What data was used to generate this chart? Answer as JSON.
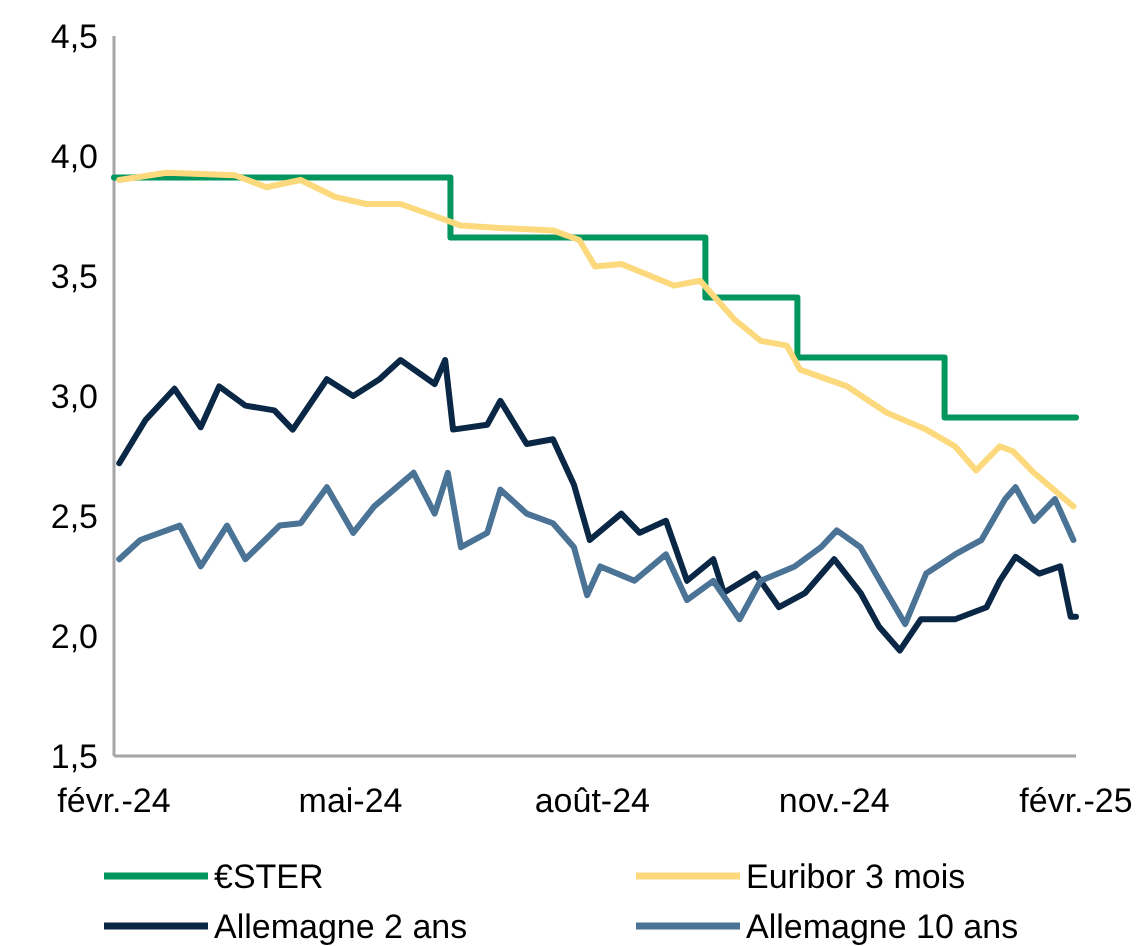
{
  "chart_data": {
    "type": "line",
    "xlim": [
      "2024-02-01",
      "2025-02-01"
    ],
    "ylim": [
      1.5,
      4.5
    ],
    "xticks": [
      {
        "value": "2024-02-01",
        "label": "févr.-24"
      },
      {
        "value": "2024-05-01",
        "label": "mai-24"
      },
      {
        "value": "2024-08-01",
        "label": "août-24"
      },
      {
        "value": "2024-11-01",
        "label": "nov.-24"
      },
      {
        "value": "2025-02-01",
        "label": "févr.-25"
      }
    ],
    "yticks": [
      {
        "value": 1.5,
        "label": "1,5"
      },
      {
        "value": 2,
        "label": "2,0"
      },
      {
        "value": 2.5,
        "label": "2,5"
      },
      {
        "value": 3,
        "label": "3,0"
      },
      {
        "value": 3.5,
        "label": "3,5"
      },
      {
        "value": 4,
        "label": "4,0"
      },
      {
        "value": 4.5,
        "label": "4,5"
      }
    ],
    "grid": false,
    "legend": "bottom",
    "series": [
      {
        "name": "€STER",
        "type": "step",
        "color": "#00965e",
        "x": [
          "2024-02-01",
          "2024-06-08",
          "2024-09-13",
          "2024-10-18",
          "2024-12-13",
          "2025-02-01"
        ],
        "values": [
          3.91,
          3.66,
          3.41,
          3.16,
          2.91,
          2.91
        ]
      },
      {
        "name": "Euribor 3 mois",
        "color": "#fdd97e",
        "x": [
          "2024-02-03",
          "2024-02-21",
          "2024-03-18",
          "2024-03-30",
          "2024-04-12",
          "2024-04-25",
          "2024-05-07",
          "2024-05-20",
          "2024-06-02",
          "2024-06-12",
          "2024-06-27",
          "2024-07-17",
          "2024-07-27",
          "2024-08-02",
          "2024-08-12",
          "2024-09-01",
          "2024-09-11",
          "2024-09-24",
          "2024-10-04",
          "2024-10-14",
          "2024-10-19",
          "2024-11-06",
          "2024-11-21",
          "2024-12-06",
          "2024-12-17",
          "2024-12-25",
          "2025-01-03",
          "2025-01-08",
          "2025-01-16",
          "2025-01-31"
        ],
        "values": [
          3.9,
          3.93,
          3.92,
          3.87,
          3.9,
          3.83,
          3.8,
          3.8,
          3.75,
          3.71,
          3.7,
          3.69,
          3.65,
          3.54,
          3.55,
          3.46,
          3.48,
          3.32,
          3.23,
          3.21,
          3.11,
          3.04,
          2.93,
          2.86,
          2.79,
          2.69,
          2.79,
          2.77,
          2.68,
          2.54
        ]
      },
      {
        "name": "Allemagne 2 ans",
        "color": "#0a2845",
        "x": [
          "2024-02-03",
          "2024-02-13",
          "2024-02-24",
          "2024-03-05",
          "2024-03-12",
          "2024-03-22",
          "2024-04-02",
          "2024-04-09",
          "2024-04-22",
          "2024-05-02",
          "2024-05-12",
          "2024-05-20",
          "2024-06-02",
          "2024-06-06",
          "2024-06-09",
          "2024-06-22",
          "2024-06-27",
          "2024-07-07",
          "2024-07-17",
          "2024-07-25",
          "2024-07-31",
          "2024-08-12",
          "2024-08-19",
          "2024-08-29",
          "2024-09-06",
          "2024-09-16",
          "2024-09-20",
          "2024-10-02",
          "2024-10-11",
          "2024-10-21",
          "2024-11-01",
          "2024-11-11",
          "2024-11-18",
          "2024-11-26",
          "2024-12-04",
          "2024-12-17",
          "2024-12-29",
          "2025-01-03",
          "2025-01-09",
          "2025-01-18",
          "2025-01-26",
          "2025-01-30",
          "2025-02-01"
        ],
        "values": [
          2.72,
          2.9,
          3.03,
          2.87,
          3.04,
          2.96,
          2.94,
          2.86,
          3.07,
          3.0,
          3.07,
          3.15,
          3.05,
          3.15,
          2.86,
          2.88,
          2.98,
          2.8,
          2.82,
          2.63,
          2.4,
          2.51,
          2.43,
          2.48,
          2.23,
          2.32,
          2.18,
          2.26,
          2.12,
          2.18,
          2.32,
          2.18,
          2.04,
          1.94,
          2.07,
          2.07,
          2.12,
          2.23,
          2.33,
          2.26,
          2.29,
          2.08,
          2.08
        ]
      },
      {
        "name": "Allemagne 10 ans",
        "color": "#4a7396",
        "x": [
          "2024-02-03",
          "2024-02-11",
          "2024-02-26",
          "2024-03-05",
          "2024-03-15",
          "2024-03-22",
          "2024-04-04",
          "2024-04-12",
          "2024-04-22",
          "2024-05-02",
          "2024-05-10",
          "2024-05-25",
          "2024-06-02",
          "2024-06-07",
          "2024-06-12",
          "2024-06-22",
          "2024-06-27",
          "2024-07-07",
          "2024-07-17",
          "2024-07-25",
          "2024-07-30",
          "2024-08-04",
          "2024-08-17",
          "2024-08-29",
          "2024-09-06",
          "2024-09-16",
          "2024-09-26",
          "2024-10-04",
          "2024-10-17",
          "2024-10-27",
          "2024-11-02",
          "2024-11-11",
          "2024-11-21",
          "2024-11-28",
          "2024-12-06",
          "2024-12-17",
          "2024-12-27",
          "2025-01-05",
          "2025-01-09",
          "2025-01-16",
          "2025-01-24",
          "2025-01-31"
        ],
        "values": [
          2.32,
          2.4,
          2.46,
          2.29,
          2.46,
          2.32,
          2.46,
          2.47,
          2.62,
          2.43,
          2.54,
          2.68,
          2.51,
          2.68,
          2.37,
          2.43,
          2.61,
          2.51,
          2.47,
          2.37,
          2.17,
          2.29,
          2.23,
          2.34,
          2.15,
          2.23,
          2.07,
          2.23,
          2.29,
          2.37,
          2.44,
          2.37,
          2.18,
          2.05,
          2.26,
          2.34,
          2.4,
          2.57,
          2.62,
          2.48,
          2.57,
          2.4
        ]
      }
    ]
  }
}
